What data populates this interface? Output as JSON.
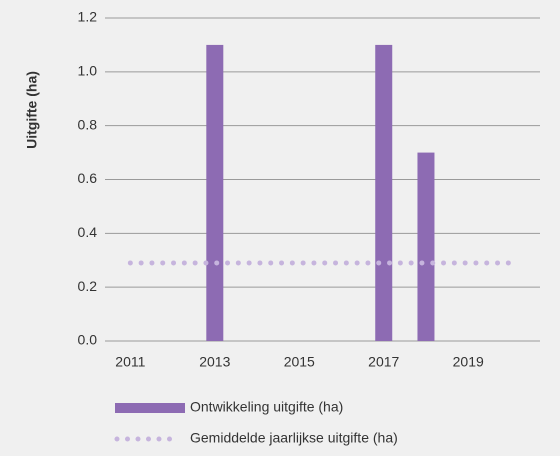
{
  "chart_data": {
    "type": "bar",
    "ylabel": "Uitgifte (ha)",
    "xlim": [
      2010.4,
      2020.7
    ],
    "xticks": [
      2011,
      2013,
      2015,
      2017,
      2019
    ],
    "ylim": [
      0,
      1.2
    ],
    "yticks": [
      {
        "value": 0,
        "label": "0.0"
      },
      0.2,
      0.4,
      0.6,
      0.8,
      {
        "value": 1,
        "label": "1.0"
      },
      1.2
    ],
    "grid": true,
    "legend": "bottom",
    "series": [
      {
        "name": "Ontwikkeling uitgifte (ha)",
        "type": "bar",
        "color": "#8d6bb3",
        "x": [
          2013,
          2017,
          2018
        ],
        "values": [
          1.1,
          1.1,
          0.7
        ]
      },
      {
        "name": "Gemiddelde jaarlijkse uitgifte (ha)",
        "type": "line",
        "style": "dotted",
        "color": "#c6b4dd",
        "x": [
          2011,
          2020
        ],
        "values": [
          0.29,
          0.29
        ]
      }
    ]
  }
}
